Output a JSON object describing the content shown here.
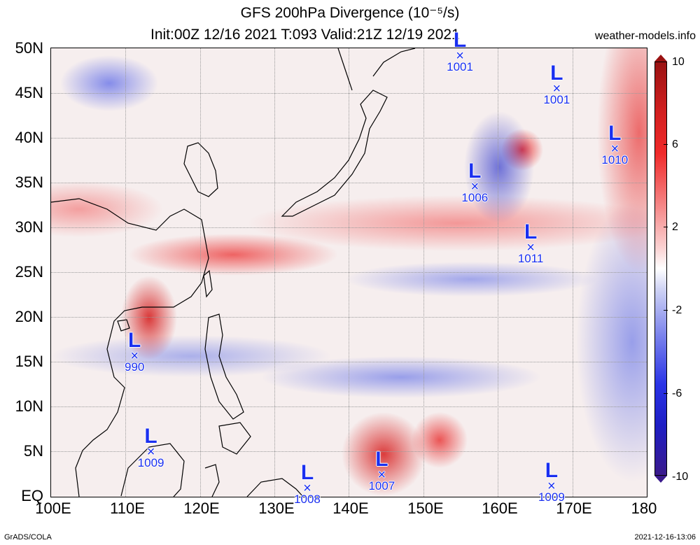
{
  "header": {
    "title_line1": "GFS 200hPa Divergence (10⁻⁵/s)",
    "title_line2": "Init:00Z 12/16 2021 T:093 Valid:21Z 12/19 2021",
    "site": "weather-models.info"
  },
  "axes": {
    "lat_labels": [
      "50N",
      "45N",
      "40N",
      "35N",
      "30N",
      "25N",
      "20N",
      "15N",
      "10N",
      "5N",
      "EQ"
    ],
    "lon_labels": [
      "100E",
      "110E",
      "120E",
      "130E",
      "140E",
      "150E",
      "160E",
      "170E",
      "180"
    ]
  },
  "lows": [
    {
      "lon": 155.0,
      "lat": 49.0,
      "pressure": "1001",
      "label": "L",
      "mark": "×"
    },
    {
      "lon": 168.0,
      "lat": 45.3,
      "pressure": "1001",
      "label": "L",
      "mark": "×"
    },
    {
      "lon": 175.8,
      "lat": 38.6,
      "pressure": "1010",
      "label": "L",
      "mark": "×"
    },
    {
      "lon": 157.0,
      "lat": 34.4,
      "pressure": "1006",
      "label": "L",
      "mark": "×"
    },
    {
      "lon": 164.5,
      "lat": 27.6,
      "pressure": "1011",
      "label": "L",
      "mark": "×"
    },
    {
      "lon": 111.3,
      "lat": 15.5,
      "pressure": "990",
      "label": "L",
      "mark": "×"
    },
    {
      "lon": 113.5,
      "lat": 4.8,
      "pressure": "1009",
      "label": "L",
      "mark": "×"
    },
    {
      "lon": 134.5,
      "lat": 0.8,
      "pressure": "1008",
      "label": "L",
      "mark": "×"
    },
    {
      "lon": 144.5,
      "lat": 2.3,
      "pressure": "1007",
      "label": "L",
      "mark": "×"
    },
    {
      "lon": 167.3,
      "lat": 1.0,
      "pressure": "1009",
      "label": "L",
      "mark": "×"
    }
  ],
  "colorbar": {
    "labels": [
      "10",
      "6",
      "2",
      "-2",
      "-6",
      "-10"
    ],
    "colors": {
      "max": "#9a1212",
      "mid": "#ffffff",
      "min": "#3a1a8c"
    }
  },
  "footer": {
    "left": "GrADS/COLA",
    "right": "2021-12-16-13:06"
  }
}
